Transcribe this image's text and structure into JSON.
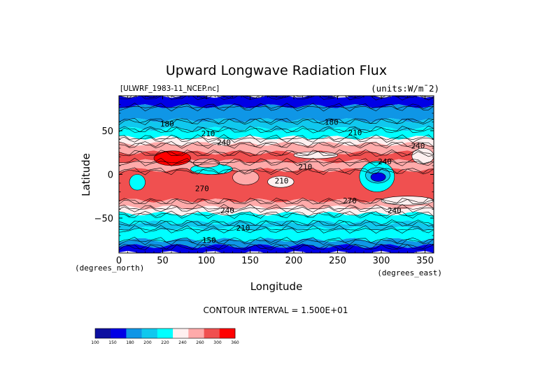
{
  "chart_data": {
    "type": "heatmap",
    "title": "Upward Longwave Radiation Flux",
    "source_label": "[ULWRF_1983-11_NCEP.nc]",
    "units_label": "(units:W/m¯2)",
    "xlabel": "Longitude",
    "ylabel": "Latitude",
    "x_unit_label": "(degrees_east)",
    "y_unit_label": "(degrees_north)",
    "xlim": [
      0,
      360
    ],
    "ylim": [
      -90,
      90
    ],
    "x_ticks": [
      0,
      50,
      100,
      150,
      200,
      250,
      300,
      350
    ],
    "y_ticks": [
      50,
      0,
      -50
    ],
    "y_tick_labels": [
      "50",
      "0",
      "−50"
    ],
    "contour_interval_text": "CONTOUR INTERVAL = 1.500E+01",
    "contour_labels": [
      {
        "text": "180",
        "lon": 55,
        "lat": 58
      },
      {
        "text": "210",
        "lon": 102,
        "lat": 47
      },
      {
        "text": "240",
        "lon": 120,
        "lat": 37
      },
      {
        "text": "180",
        "lon": 243,
        "lat": 60
      },
      {
        "text": "210",
        "lon": 270,
        "lat": 48
      },
      {
        "text": "240",
        "lon": 342,
        "lat": 33
      },
      {
        "text": "240",
        "lon": 304,
        "lat": 15
      },
      {
        "text": "210",
        "lon": 213,
        "lat": 9
      },
      {
        "text": "210",
        "lon": 186,
        "lat": -7
      },
      {
        "text": "270",
        "lon": 95,
        "lat": -16
      },
      {
        "text": "270",
        "lon": 264,
        "lat": -30
      },
      {
        "text": "240",
        "lon": 124,
        "lat": -41
      },
      {
        "text": "240",
        "lon": 315,
        "lat": -41
      },
      {
        "text": "210",
        "lon": 142,
        "lat": -61
      },
      {
        "text": "150",
        "lon": 103,
        "lat": -75
      }
    ],
    "colorbar": {
      "levels": [
        "100",
        "150",
        "180",
        "200",
        "220",
        "240",
        "260",
        "300",
        "360"
      ],
      "colors": [
        "#0d0fa0",
        "#0000e6",
        "#0f96e6",
        "#10c8ee",
        "#00ffff",
        "#fff0f0",
        "#ffaaaa",
        "#f05050",
        "#ff0000"
      ]
    },
    "zonal_bands": [
      {
        "lat_min": 78,
        "lat_max": 90,
        "color": "#0000e6"
      },
      {
        "lat_min": 62,
        "lat_max": 78,
        "color": "#0f96e6"
      },
      {
        "lat_min": 52,
        "lat_max": 62,
        "color": "#10c8ee"
      },
      {
        "lat_min": 42,
        "lat_max": 52,
        "color": "#00ffff"
      },
      {
        "lat_min": 35,
        "lat_max": 42,
        "color": "#fff0f0"
      },
      {
        "lat_min": 25,
        "lat_max": 35,
        "color": "#ffaaaa"
      },
      {
        "lat_min": 15,
        "lat_max": 25,
        "color": "#f05050"
      },
      {
        "lat_min": 5,
        "lat_max": 15,
        "color": "#ffaaaa"
      },
      {
        "lat_min": -30,
        "lat_max": 5,
        "color": "#f05050"
      },
      {
        "lat_min": -38,
        "lat_max": -30,
        "color": "#ffaaaa"
      },
      {
        "lat_min": -45,
        "lat_max": -38,
        "color": "#fff0f0"
      },
      {
        "lat_min": -55,
        "lat_max": -45,
        "color": "#00ffff"
      },
      {
        "lat_min": -62,
        "lat_max": -55,
        "color": "#10c8ee"
      },
      {
        "lat_min": -75,
        "lat_max": -62,
        "color": "#00ffff"
      },
      {
        "lat_min": -82,
        "lat_max": -75,
        "color": "#0f96e6"
      },
      {
        "lat_min": -90,
        "lat_max": -82,
        "color": "#0000e6"
      }
    ],
    "patches": [
      {
        "lon_min": 40,
        "lon_max": 82,
        "lat_min": 10,
        "lat_max": 27,
        "color": "#ff0000"
      },
      {
        "lon_min": 82,
        "lon_max": 130,
        "lat_min": 0,
        "lat_max": 12,
        "color": "#00ffff"
      },
      {
        "lon_min": 85,
        "lon_max": 115,
        "lat_min": 8,
        "lat_max": 18,
        "color": "#ffaaaa"
      },
      {
        "lon_min": 130,
        "lon_max": 160,
        "lat_min": -12,
        "lat_max": 5,
        "color": "#ffaaaa"
      },
      {
        "lon_min": 170,
        "lon_max": 200,
        "lat_min": -15,
        "lat_max": -2,
        "color": "#fff0f0"
      },
      {
        "lon_min": 275,
        "lon_max": 315,
        "lat_min": -20,
        "lat_max": 15,
        "color": "#00ffff"
      },
      {
        "lon_min": 282,
        "lon_max": 310,
        "lat_min": -10,
        "lat_max": 8,
        "color": "#10c8ee"
      },
      {
        "lon_min": 288,
        "lon_max": 305,
        "lat_min": -8,
        "lat_max": 2,
        "color": "#0000e6"
      },
      {
        "lon_min": 12,
        "lon_max": 30,
        "lat_min": -18,
        "lat_max": 0,
        "color": "#00ffff"
      },
      {
        "lon_min": 300,
        "lon_max": 360,
        "lat_min": -35,
        "lat_max": -25,
        "color": "#fff0f0"
      },
      {
        "lon_min": 200,
        "lon_max": 250,
        "lat_min": 18,
        "lat_max": 26,
        "color": "#fff0f0"
      },
      {
        "lon_min": 335,
        "lon_max": 360,
        "lat_min": 12,
        "lat_max": 30,
        "color": "#fff0f0"
      }
    ]
  }
}
